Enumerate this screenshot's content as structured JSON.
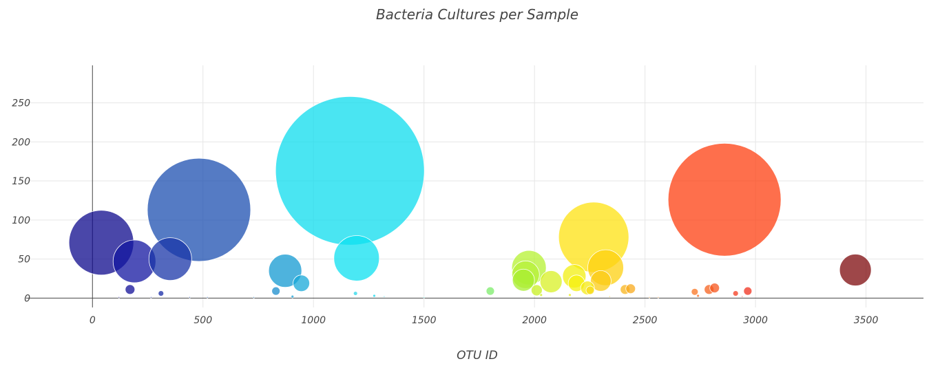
{
  "chart_data": {
    "type": "scatter",
    "variant": "bubble",
    "title": "Bacteria Cultures per Sample",
    "xlabel": "OTU ID",
    "ylabel": "",
    "xlim": [
      -300,
      3760
    ],
    "ylim": [
      -12,
      298
    ],
    "xticks": [
      0,
      500,
      1000,
      1500,
      2000,
      2500,
      3000,
      3500
    ],
    "yticks": [
      0,
      50,
      100,
      150,
      200,
      250
    ],
    "grid": true,
    "colorscale": "Jet (by OTU ID)",
    "opacity": 0.75,
    "points": [
      {
        "x": 40,
        "y": 71,
        "r": 47,
        "color": "#0d0a8c"
      },
      {
        "x": 170,
        "y": 11,
        "r": 7,
        "color": "#120f97"
      },
      {
        "x": 190,
        "y": 47,
        "r": 31,
        "color": "#1315a0"
      },
      {
        "x": 310,
        "y": 6,
        "r": 4,
        "color": "#152aa6"
      },
      {
        "x": 352,
        "y": 50,
        "r": 31,
        "color": "#1a35a8"
      },
      {
        "x": 482,
        "y": 113,
        "r": 75,
        "color": "#1c4fb0"
      },
      {
        "x": 830,
        "y": 9,
        "r": 6,
        "color": "#1a8ccc"
      },
      {
        "x": 872,
        "y": 35,
        "r": 24,
        "color": "#139ad2"
      },
      {
        "x": 945,
        "y": 19,
        "r": 12,
        "color": "#17a8d8"
      },
      {
        "x": 1165,
        "y": 163,
        "r": 108,
        "color": "#0edcee"
      },
      {
        "x": 1195,
        "y": 51,
        "r": 33,
        "color": "#0ee0f0"
      },
      {
        "x": 1190,
        "y": 6,
        "r": 3,
        "color": "#2ad7ea"
      },
      {
        "x": 1800,
        "y": 9,
        "r": 6,
        "color": "#7cec6a"
      },
      {
        "x": 1975,
        "y": 39,
        "r": 25,
        "color": "#b6f232"
      },
      {
        "x": 1960,
        "y": 30,
        "r": 20,
        "color": "#b7f03a"
      },
      {
        "x": 1950,
        "y": 23,
        "r": 16,
        "color": "#a8ee30"
      },
      {
        "x": 2010,
        "y": 10,
        "r": 8,
        "color": "#c8f022"
      },
      {
        "x": 2075,
        "y": 21,
        "r": 16,
        "color": "#d8f024"
      },
      {
        "x": 2180,
        "y": 28,
        "r": 17,
        "color": "#f2ef10"
      },
      {
        "x": 2190,
        "y": 19,
        "r": 12,
        "color": "#f6f00e"
      },
      {
        "x": 2240,
        "y": 13,
        "r": 10,
        "color": "#f5ea12"
      },
      {
        "x": 2268,
        "y": 78,
        "r": 51,
        "color": "#fde210"
      },
      {
        "x": 2322,
        "y": 39,
        "r": 26,
        "color": "#fdd010"
      },
      {
        "x": 2300,
        "y": 22,
        "r": 15,
        "color": "#fbcb14"
      },
      {
        "x": 2252,
        "y": 10,
        "r": 6,
        "color": "#f8da18"
      },
      {
        "x": 2410,
        "y": 11,
        "r": 7,
        "color": "#f8b41c"
      },
      {
        "x": 2435,
        "y": 12,
        "r": 7,
        "color": "#f8aa1c"
      },
      {
        "x": 2860,
        "y": 126,
        "r": 82,
        "color": "#fe3f10"
      },
      {
        "x": 2725,
        "y": 8,
        "r": 5,
        "color": "#f97422"
      },
      {
        "x": 2790,
        "y": 11,
        "r": 7,
        "color": "#f6621e"
      },
      {
        "x": 2815,
        "y": 13,
        "r": 7,
        "color": "#f5561e"
      },
      {
        "x": 2910,
        "y": 6,
        "r": 4,
        "color": "#f43a1e"
      },
      {
        "x": 2965,
        "y": 9,
        "r": 6,
        "color": "#f0301e"
      },
      {
        "x": 3452,
        "y": 36,
        "r": 23,
        "color": "#7e0a0c"
      },
      {
        "x": 120,
        "y": 1,
        "r": 1,
        "color": "#100d90"
      },
      {
        "x": 265,
        "y": 1,
        "r": 1,
        "color": "#1422a4"
      },
      {
        "x": 440,
        "y": 1,
        "r": 1,
        "color": "#1a48ae"
      },
      {
        "x": 520,
        "y": 1,
        "r": 1,
        "color": "#1b55b2"
      },
      {
        "x": 730,
        "y": 1,
        "r": 1,
        "color": "#1a7cc4"
      },
      {
        "x": 905,
        "y": 2,
        "r": 2,
        "color": "#16a0d6"
      },
      {
        "x": 1275,
        "y": 3,
        "r": 2,
        "color": "#14d8ee"
      },
      {
        "x": 1320,
        "y": 2,
        "r": 1,
        "color": "#20dced"
      },
      {
        "x": 1500,
        "y": 1,
        "r": 1,
        "color": "#3ae6d6"
      },
      {
        "x": 2030,
        "y": 4,
        "r": 2,
        "color": "#d0f01e"
      },
      {
        "x": 2160,
        "y": 4,
        "r": 2,
        "color": "#ecee14"
      },
      {
        "x": 2340,
        "y": 2,
        "r": 1,
        "color": "#fbc418"
      },
      {
        "x": 2520,
        "y": 1,
        "r": 1,
        "color": "#f99c20"
      },
      {
        "x": 2560,
        "y": 1,
        "r": 1,
        "color": "#f98e22"
      },
      {
        "x": 2740,
        "y": 3,
        "r": 2,
        "color": "#f86c22"
      },
      {
        "x": 2940,
        "y": 2,
        "r": 1,
        "color": "#f3341e"
      }
    ]
  }
}
